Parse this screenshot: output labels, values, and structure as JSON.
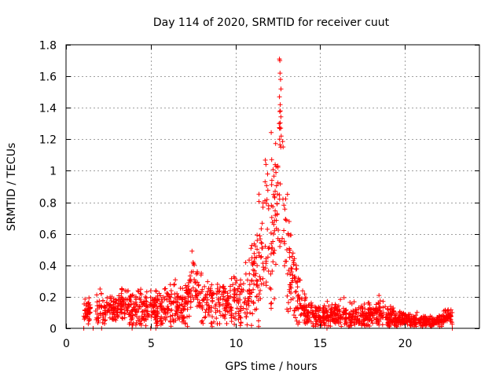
{
  "chart_data": {
    "type": "scatter",
    "title": "Day 114 of 2020, SRMTID for receiver cuut",
    "xlabel": "GPS time / hours",
    "ylabel": "SRMTID / TECUs",
    "xlim": [
      0,
      24.4
    ],
    "ylim": [
      0,
      1.8
    ],
    "xticks": [
      0,
      5,
      10,
      15,
      20
    ],
    "yticks": [
      0,
      0.2,
      0.4,
      0.6,
      0.8,
      1,
      1.2,
      1.4,
      1.6,
      1.8
    ],
    "xtick_labels": [
      "0",
      "5",
      "10",
      "15",
      "20"
    ],
    "ytick_labels": [
      "0",
      "0.2",
      "0.4",
      "0.6",
      "0.8",
      "1",
      "1.2",
      "1.4",
      "1.6",
      "1.8"
    ],
    "grid": true,
    "marker": "+",
    "color": "#ff0000",
    "profile": {
      "x": [
        1.0,
        1.5,
        2.0,
        3.0,
        4.0,
        5.0,
        6.0,
        7.0,
        7.6,
        8.0,
        9.0,
        10.0,
        10.5,
        11.0,
        11.5,
        12.0,
        12.3,
        12.6,
        12.8,
        13.0,
        13.4,
        13.8,
        14.2,
        15.0,
        16.0,
        17.0,
        18.0,
        18.6,
        19.0,
        20.0,
        21.0,
        22.0,
        22.6
      ],
      "y": [
        0.11,
        0.11,
        0.12,
        0.13,
        0.12,
        0.13,
        0.14,
        0.16,
        0.28,
        0.18,
        0.17,
        0.18,
        0.15,
        0.25,
        0.5,
        0.55,
        0.72,
        0.95,
        0.82,
        0.48,
        0.3,
        0.15,
        0.09,
        0.08,
        0.09,
        0.06,
        0.08,
        0.1,
        0.07,
        0.05,
        0.04,
        0.04,
        0.08
      ]
    },
    "spread": {
      "x": [
        1.0,
        5.0,
        7.6,
        10.0,
        11.0,
        11.5,
        12.0,
        12.6,
        13.0,
        13.5,
        14.0,
        15.0,
        18.5,
        20.0,
        22.6
      ],
      "y": [
        0.04,
        0.06,
        0.08,
        0.07,
        0.12,
        0.2,
        0.25,
        0.35,
        0.22,
        0.12,
        0.05,
        0.04,
        0.04,
        0.02,
        0.02
      ]
    },
    "peak_points": [
      {
        "x": 12.6,
        "y": 1.71
      },
      {
        "x": 12.62,
        "y": 1.7
      },
      {
        "x": 12.63,
        "y": 1.62
      },
      {
        "x": 12.66,
        "y": 1.58
      },
      {
        "x": 12.6,
        "y": 1.47
      },
      {
        "x": 12.65,
        "y": 1.38
      },
      {
        "x": 12.58,
        "y": 1.3
      },
      {
        "x": 12.7,
        "y": 1.22
      },
      {
        "x": 12.68,
        "y": 1.15
      },
      {
        "x": 11.8,
        "y": 1.04
      },
      {
        "x": 12.5,
        "y": 1.03
      },
      {
        "x": 11.9,
        "y": 0.98
      },
      {
        "x": 11.75,
        "y": 0.93
      }
    ],
    "zero_points": [
      1.05,
      1.6,
      2.1,
      3.9,
      5.0,
      5.3,
      15.4,
      22.8
    ],
    "x_range_hours": [
      1.0,
      22.8
    ],
    "approx_point_count": 1800
  }
}
